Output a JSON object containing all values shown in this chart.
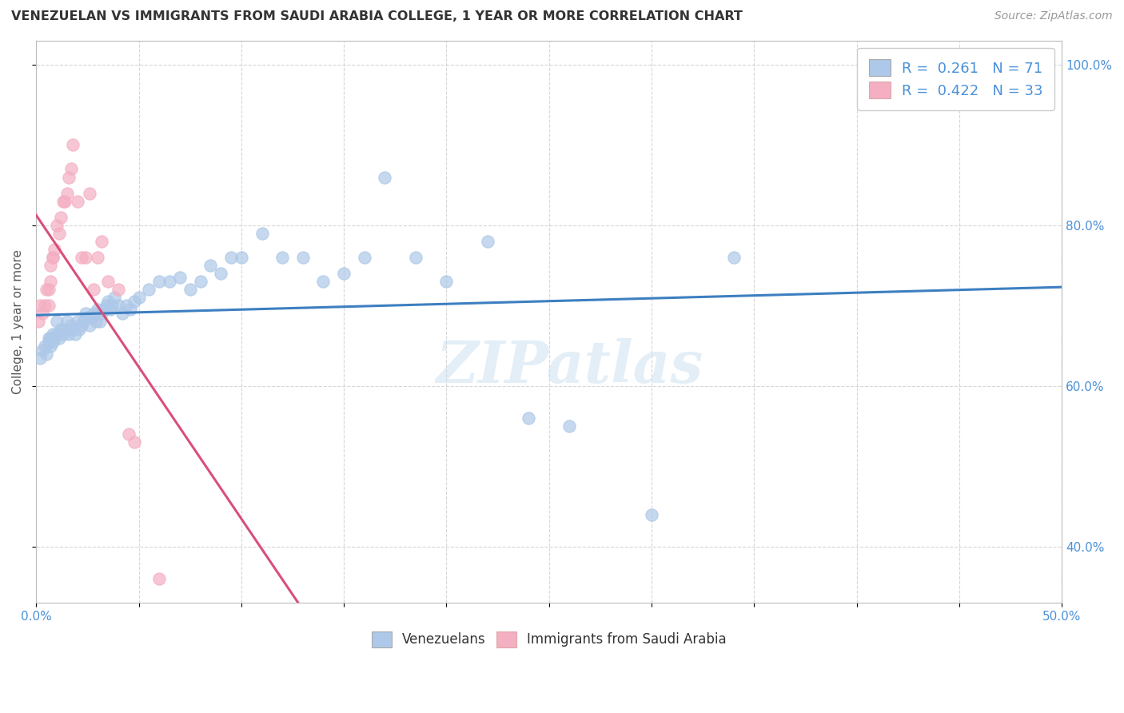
{
  "title": "VENEZUELAN VS IMMIGRANTS FROM SAUDI ARABIA COLLEGE, 1 YEAR OR MORE CORRELATION CHART",
  "source_text": "Source: ZipAtlas.com",
  "ylabel": "College, 1 year or more",
  "x_min": 0.0,
  "x_max": 0.5,
  "y_min": 0.33,
  "y_max": 1.03,
  "y_ticks": [
    0.4,
    0.6,
    0.8,
    1.0
  ],
  "y_tick_labels": [
    "40.0%",
    "60.0%",
    "80.0%",
    "100.0%"
  ],
  "blue_scatter_color": "#adc8e8",
  "pink_scatter_color": "#f4afc2",
  "blue_line_color": "#3d7fc1",
  "pink_line_color": "#d94f7a",
  "r_blue": 0.261,
  "n_blue": 71,
  "r_pink": 0.422,
  "n_pink": 33,
  "watermark": "ZIPatlas",
  "venezuelans_label": "Venezuelans",
  "saudi_label": "Immigrants from Saudi Arabia",
  "title_fontsize": 11.5,
  "axis_label_fontsize": 11,
  "tick_fontsize": 11,
  "legend_fontsize": 13,
  "source_fontsize": 10,
  "blue_x": [
    0.002,
    0.003,
    0.004,
    0.005,
    0.006,
    0.006,
    0.007,
    0.007,
    0.008,
    0.008,
    0.009,
    0.01,
    0.01,
    0.011,
    0.012,
    0.013,
    0.014,
    0.015,
    0.016,
    0.017,
    0.018,
    0.019,
    0.02,
    0.021,
    0.022,
    0.023,
    0.024,
    0.025,
    0.026,
    0.027,
    0.028,
    0.029,
    0.03,
    0.031,
    0.032,
    0.033,
    0.034,
    0.035,
    0.036,
    0.037,
    0.038,
    0.04,
    0.042,
    0.044,
    0.046,
    0.048,
    0.05,
    0.055,
    0.06,
    0.065,
    0.07,
    0.075,
    0.08,
    0.085,
    0.09,
    0.095,
    0.1,
    0.11,
    0.12,
    0.13,
    0.14,
    0.15,
    0.16,
    0.17,
    0.185,
    0.2,
    0.22,
    0.24,
    0.26,
    0.3,
    0.34
  ],
  "blue_y": [
    0.635,
    0.645,
    0.65,
    0.64,
    0.66,
    0.655,
    0.65,
    0.66,
    0.655,
    0.665,
    0.66,
    0.665,
    0.68,
    0.66,
    0.67,
    0.665,
    0.67,
    0.68,
    0.665,
    0.675,
    0.67,
    0.665,
    0.68,
    0.67,
    0.675,
    0.68,
    0.69,
    0.685,
    0.675,
    0.685,
    0.69,
    0.68,
    0.695,
    0.68,
    0.69,
    0.695,
    0.7,
    0.705,
    0.695,
    0.7,
    0.71,
    0.7,
    0.69,
    0.7,
    0.695,
    0.705,
    0.71,
    0.72,
    0.73,
    0.73,
    0.735,
    0.72,
    0.73,
    0.75,
    0.74,
    0.76,
    0.76,
    0.79,
    0.76,
    0.76,
    0.73,
    0.74,
    0.76,
    0.86,
    0.76,
    0.73,
    0.78,
    0.56,
    0.55,
    0.44,
    0.76
  ],
  "pink_x": [
    0.001,
    0.002,
    0.003,
    0.004,
    0.005,
    0.006,
    0.006,
    0.007,
    0.007,
    0.008,
    0.008,
    0.009,
    0.01,
    0.011,
    0.012,
    0.013,
    0.014,
    0.015,
    0.016,
    0.017,
    0.018,
    0.02,
    0.022,
    0.024,
    0.026,
    0.028,
    0.03,
    0.032,
    0.035,
    0.04,
    0.045,
    0.048,
    0.06
  ],
  "pink_y": [
    0.68,
    0.7,
    0.69,
    0.7,
    0.72,
    0.7,
    0.72,
    0.75,
    0.73,
    0.76,
    0.76,
    0.77,
    0.8,
    0.79,
    0.81,
    0.83,
    0.83,
    0.84,
    0.86,
    0.87,
    0.9,
    0.83,
    0.76,
    0.76,
    0.84,
    0.72,
    0.76,
    0.78,
    0.73,
    0.72,
    0.54,
    0.53,
    0.36
  ]
}
